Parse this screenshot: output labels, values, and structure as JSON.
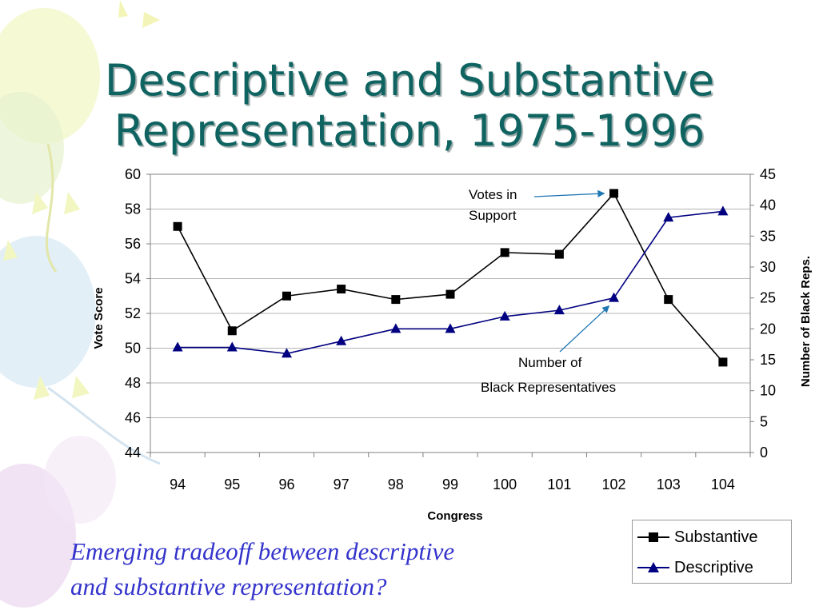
{
  "title": {
    "line1": "Descriptive and Substantive",
    "line2": "Representation, 1975-1996"
  },
  "subtitle": {
    "line1": "Emerging tradeoff between descriptive",
    "line2": "and substantive representation?"
  },
  "colors": {
    "title": "#0f6461",
    "subtitle": "#3333cc",
    "substantive": "#000000",
    "descriptive": "#000080",
    "annotation_arrow": "#1f77b4"
  },
  "chart_data": {
    "type": "line",
    "xlabel": "Congress",
    "ylabel": "Vote Score",
    "y2label": "Number of Black Reps.",
    "categories": [
      "94",
      "95",
      "96",
      "97",
      "98",
      "99",
      "100",
      "101",
      "102",
      "103",
      "104"
    ],
    "ylim": [
      44,
      60
    ],
    "yticks": [
      44,
      46,
      48,
      50,
      52,
      54,
      56,
      58,
      60
    ],
    "y2lim": [
      0,
      45
    ],
    "y2ticks": [
      0,
      5,
      10,
      15,
      20,
      25,
      30,
      35,
      40,
      45
    ],
    "grid": true,
    "legend_position": "bottom-right",
    "series": [
      {
        "name": "Substantive",
        "axis": "left",
        "marker": "square",
        "values": [
          57.0,
          51.0,
          53.0,
          53.4,
          52.8,
          53.1,
          55.5,
          55.4,
          58.9,
          52.8,
          49.2
        ]
      },
      {
        "name": "Descriptive",
        "axis": "right",
        "marker": "triangle",
        "values": [
          17,
          17,
          16,
          18,
          20,
          20,
          22,
          23,
          25,
          38,
          39
        ]
      }
    ],
    "annotations": [
      {
        "lines": [
          "Votes in",
          "Support"
        ],
        "target_series": 0,
        "target_index": 8
      },
      {
        "lines": [
          "Number of",
          "Black Representatives"
        ],
        "target_series": 1,
        "target_index": 8
      }
    ]
  }
}
